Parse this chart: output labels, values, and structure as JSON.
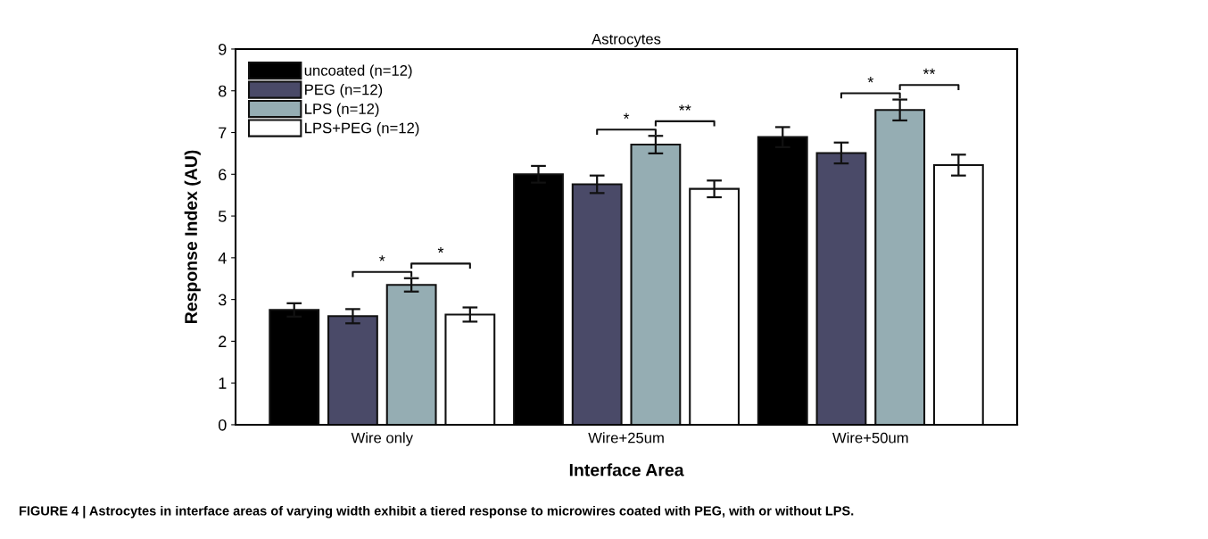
{
  "chart_data": {
    "type": "bar",
    "title": "Astrocytes",
    "xlabel": "Interface Area",
    "ylabel": "Response Index (AU)",
    "categories": [
      "Wire only",
      "Wire+25um",
      "Wire+50um"
    ],
    "series": [
      {
        "name": "uncoated (n=12)",
        "color": "#000000",
        "values": [
          2.75,
          6.0,
          6.89
        ],
        "errors": [
          0.16,
          0.2,
          0.24
        ]
      },
      {
        "name": "PEG (n=12)",
        "color": "#4a4a68",
        "values": [
          2.6,
          5.76,
          6.51
        ],
        "errors": [
          0.17,
          0.21,
          0.25
        ]
      },
      {
        "name": "LPS (n=12)",
        "color": "#95adb3",
        "values": [
          3.35,
          6.71,
          7.54
        ],
        "errors": [
          0.16,
          0.21,
          0.25
        ]
      },
      {
        "name": "LPS+PEG (n=12)",
        "color": "#ffffff",
        "values": [
          2.64,
          5.65,
          6.22
        ],
        "errors": [
          0.17,
          0.2,
          0.25
        ]
      }
    ],
    "ylim": [
      0,
      9
    ],
    "yticks": [
      0,
      1,
      2,
      3,
      4,
      5,
      6,
      7,
      8,
      9
    ],
    "grid": false,
    "legend": "top left",
    "annotations": [
      "*",
      "*",
      "*",
      "**",
      "*",
      "**",
      "FIGURE 4 | Astrocytes in interface areas of varying width exhibit a tiered response to microwires coated with PEG, with or without LPS."
    ]
  }
}
